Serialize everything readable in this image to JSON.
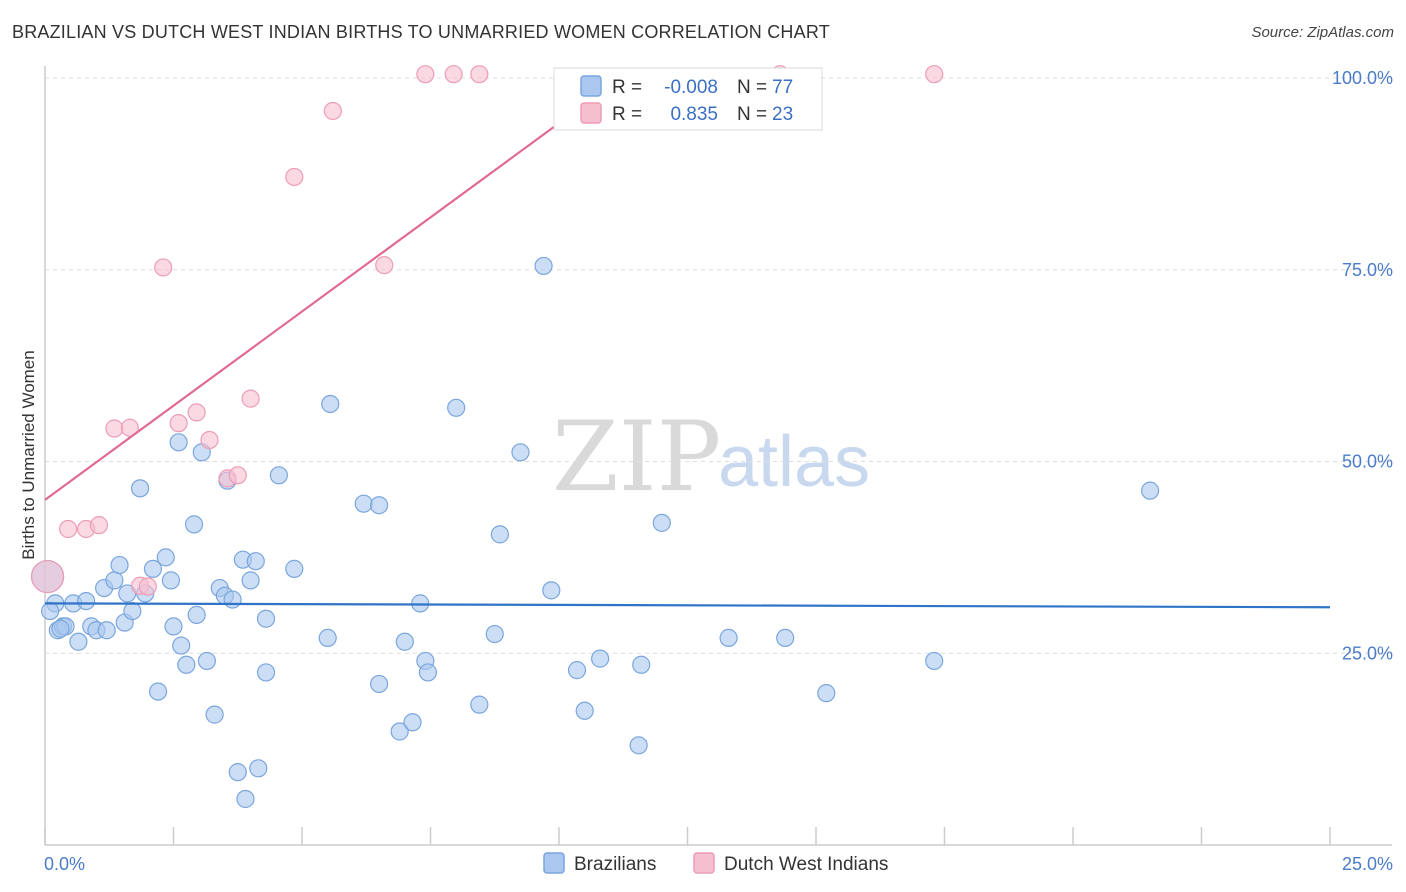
{
  "title": "BRAZILIAN VS DUTCH WEST INDIAN BIRTHS TO UNMARRIED WOMEN CORRELATION CHART",
  "source": "Source: ZipAtlas.com",
  "watermark": {
    "zip": "ZIP",
    "atlas": "atlas"
  },
  "legend_stats": [
    {
      "r_label": "R =",
      "r_value": "-0.008",
      "n_label": "N =",
      "n_value": "77"
    },
    {
      "r_label": "R =",
      "r_value": "0.835",
      "n_label": "N =",
      "n_value": "23"
    }
  ],
  "bottom_legend": [
    "Brazilians",
    "Dutch West Indians"
  ],
  "colors": {
    "blue_fill": "#aac8ef",
    "blue_stroke": "#7aa6dd",
    "blue_line": "#2f74c8",
    "pink_fill": "#f6bfd0",
    "pink_stroke": "#ee9cb6",
    "pink_line": "#e06a93",
    "tick_text": "#4a7cc9",
    "grid": "#dddddd"
  },
  "chart_data": {
    "type": "scatter",
    "title": "BRAZILIAN VS DUTCH WEST INDIAN BIRTHS TO UNMARRIED WOMEN CORRELATION CHART",
    "xlabel": "",
    "ylabel": "Births to Unmarried Women",
    "xlim": [
      0,
      25
    ],
    "ylim": [
      0,
      100
    ],
    "x_tick_labels": [
      "0.0%",
      "25.0%"
    ],
    "y_ticks": [
      25,
      50,
      75,
      100
    ],
    "y_tick_labels": [
      "25.0%",
      "50.0%",
      "75.0%",
      "100.0%"
    ],
    "grid": true,
    "legend_position": "top-center",
    "series": [
      {
        "name": "Brazilians",
        "r": -0.008,
        "n": 77,
        "trend": {
          "x": [
            0,
            25
          ],
          "y": [
            31.5,
            31.0
          ]
        },
        "points": [
          [
            0.05,
            35
          ],
          [
            0.2,
            31.5
          ],
          [
            0.25,
            28
          ],
          [
            0.35,
            28.5
          ],
          [
            0.4,
            28.5
          ],
          [
            0.55,
            31.5
          ],
          [
            0.65,
            26.5
          ],
          [
            0.8,
            31.8
          ],
          [
            0.9,
            28.5
          ],
          [
            1.0,
            28
          ],
          [
            1.2,
            28
          ],
          [
            1.15,
            33.5
          ],
          [
            1.35,
            34.5
          ],
          [
            1.45,
            36.5
          ],
          [
            1.55,
            29
          ],
          [
            1.6,
            32.8
          ],
          [
            1.7,
            30.5
          ],
          [
            1.85,
            46.5
          ],
          [
            1.95,
            32.8
          ],
          [
            2.1,
            36
          ],
          [
            2.2,
            20
          ],
          [
            2.35,
            37.5
          ],
          [
            2.45,
            34.5
          ],
          [
            2.5,
            28.5
          ],
          [
            2.6,
            52.5
          ],
          [
            2.65,
            26
          ],
          [
            2.75,
            23.5
          ],
          [
            2.9,
            41.8
          ],
          [
            2.95,
            30
          ],
          [
            3.05,
            51.2
          ],
          [
            3.15,
            24
          ],
          [
            3.3,
            17
          ],
          [
            3.4,
            33.5
          ],
          [
            3.5,
            32.5
          ],
          [
            3.55,
            47.5
          ],
          [
            3.65,
            32
          ],
          [
            3.75,
            9.5
          ],
          [
            3.85,
            37.2
          ],
          [
            3.9,
            6
          ],
          [
            4.0,
            34.5
          ],
          [
            4.1,
            37
          ],
          [
            4.15,
            10
          ],
          [
            4.3,
            29.5
          ],
          [
            4.3,
            22.5
          ],
          [
            4.55,
            48.2
          ],
          [
            4.85,
            36
          ],
          [
            5.55,
            57.5
          ],
          [
            5.5,
            27
          ],
          [
            6.2,
            44.5
          ],
          [
            6.5,
            44.3
          ],
          [
            6.5,
            21
          ],
          [
            6.9,
            14.8
          ],
          [
            7.0,
            26.5
          ],
          [
            7.15,
            16
          ],
          [
            7.3,
            31.5
          ],
          [
            7.4,
            24
          ],
          [
            7.45,
            22.5
          ],
          [
            8.0,
            57
          ],
          [
            8.45,
            18.3
          ],
          [
            8.75,
            27.5
          ],
          [
            8.85,
            40.5
          ],
          [
            9.25,
            51.2
          ],
          [
            9.7,
            75.5
          ],
          [
            9.85,
            33.2
          ],
          [
            10.35,
            22.8
          ],
          [
            10.5,
            17.5
          ],
          [
            10.8,
            24.3
          ],
          [
            11.55,
            13
          ],
          [
            11.6,
            23.5
          ],
          [
            12.0,
            42
          ],
          [
            13.3,
            27
          ],
          [
            14.4,
            27
          ],
          [
            15.2,
            19.8
          ],
          [
            17.3,
            24
          ],
          [
            21.5,
            46.2
          ],
          [
            0.1,
            30.5
          ],
          [
            0.3,
            28.2
          ]
        ]
      },
      {
        "name": "Dutch West Indians",
        "r": 0.835,
        "n": 23,
        "trend": {
          "x": [
            0,
            11.2
          ],
          "y": [
            45,
            100
          ]
        },
        "points": [
          [
            0.05,
            35
          ],
          [
            0.45,
            41.2
          ],
          [
            0.8,
            41.2
          ],
          [
            1.05,
            41.7
          ],
          [
            1.35,
            54.3
          ],
          [
            1.65,
            54.4
          ],
          [
            1.85,
            33.8
          ],
          [
            2.0,
            33.7
          ],
          [
            2.3,
            75.3
          ],
          [
            2.6,
            55
          ],
          [
            2.95,
            56.4
          ],
          [
            3.2,
            52.8
          ],
          [
            3.55,
            47.8
          ],
          [
            3.75,
            48.2
          ],
          [
            4.0,
            58.2
          ],
          [
            4.85,
            87.1
          ],
          [
            5.6,
            95.7
          ],
          [
            6.6,
            75.6
          ],
          [
            7.4,
            100.5
          ],
          [
            7.95,
            100.5
          ],
          [
            8.45,
            100.5
          ],
          [
            14.3,
            100.5
          ],
          [
            17.3,
            100.5
          ]
        ]
      }
    ]
  }
}
